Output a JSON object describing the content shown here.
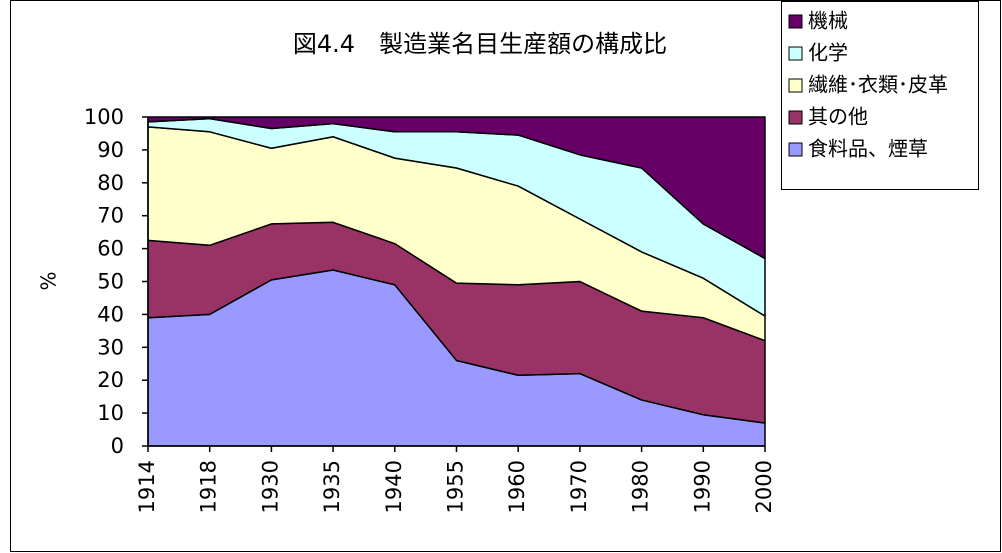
{
  "chart_data": {
    "type": "stacked_area",
    "title": "図4.4　製造業名目生産額の構成比",
    "y_label": "%",
    "categories": [
      "1914",
      "1918",
      "1930",
      "1935",
      "1940",
      "1955",
      "1960",
      "1970",
      "1980",
      "1990",
      "2000"
    ],
    "series": [
      {
        "name": "食料品、煙草",
        "color": "#9999ff",
        "values": [
          39,
          40,
          50.5,
          53.5,
          49,
          26,
          21.5,
          22,
          14,
          9.5,
          7
        ]
      },
      {
        "name": "其の他",
        "color": "#993366",
        "values": [
          23.5,
          21,
          17,
          14.5,
          12.5,
          23.5,
          27.5,
          28,
          27,
          29.5,
          25
        ]
      },
      {
        "name": "繊維･衣類･皮革",
        "color": "#ffffcc",
        "values": [
          34.5,
          34.5,
          23,
          26,
          26,
          35,
          30,
          19,
          18,
          12,
          7.5
        ]
      },
      {
        "name": "化学",
        "color": "#ccffff",
        "values": [
          1.5,
          4,
          6,
          4,
          8,
          11,
          15.5,
          19.5,
          25.5,
          16.5,
          17.5
        ]
      },
      {
        "name": "機械",
        "color": "#660066",
        "values": [
          1.5,
          0.5,
          3.5,
          2,
          4.5,
          4.5,
          5.5,
          11.5,
          15.5,
          32.5,
          43
        ]
      }
    ],
    "ylim": [
      0,
      100
    ],
    "yticks": [
      0,
      10,
      20,
      30,
      40,
      50,
      60,
      70,
      80,
      90,
      100
    ],
    "legend": "top-right"
  }
}
